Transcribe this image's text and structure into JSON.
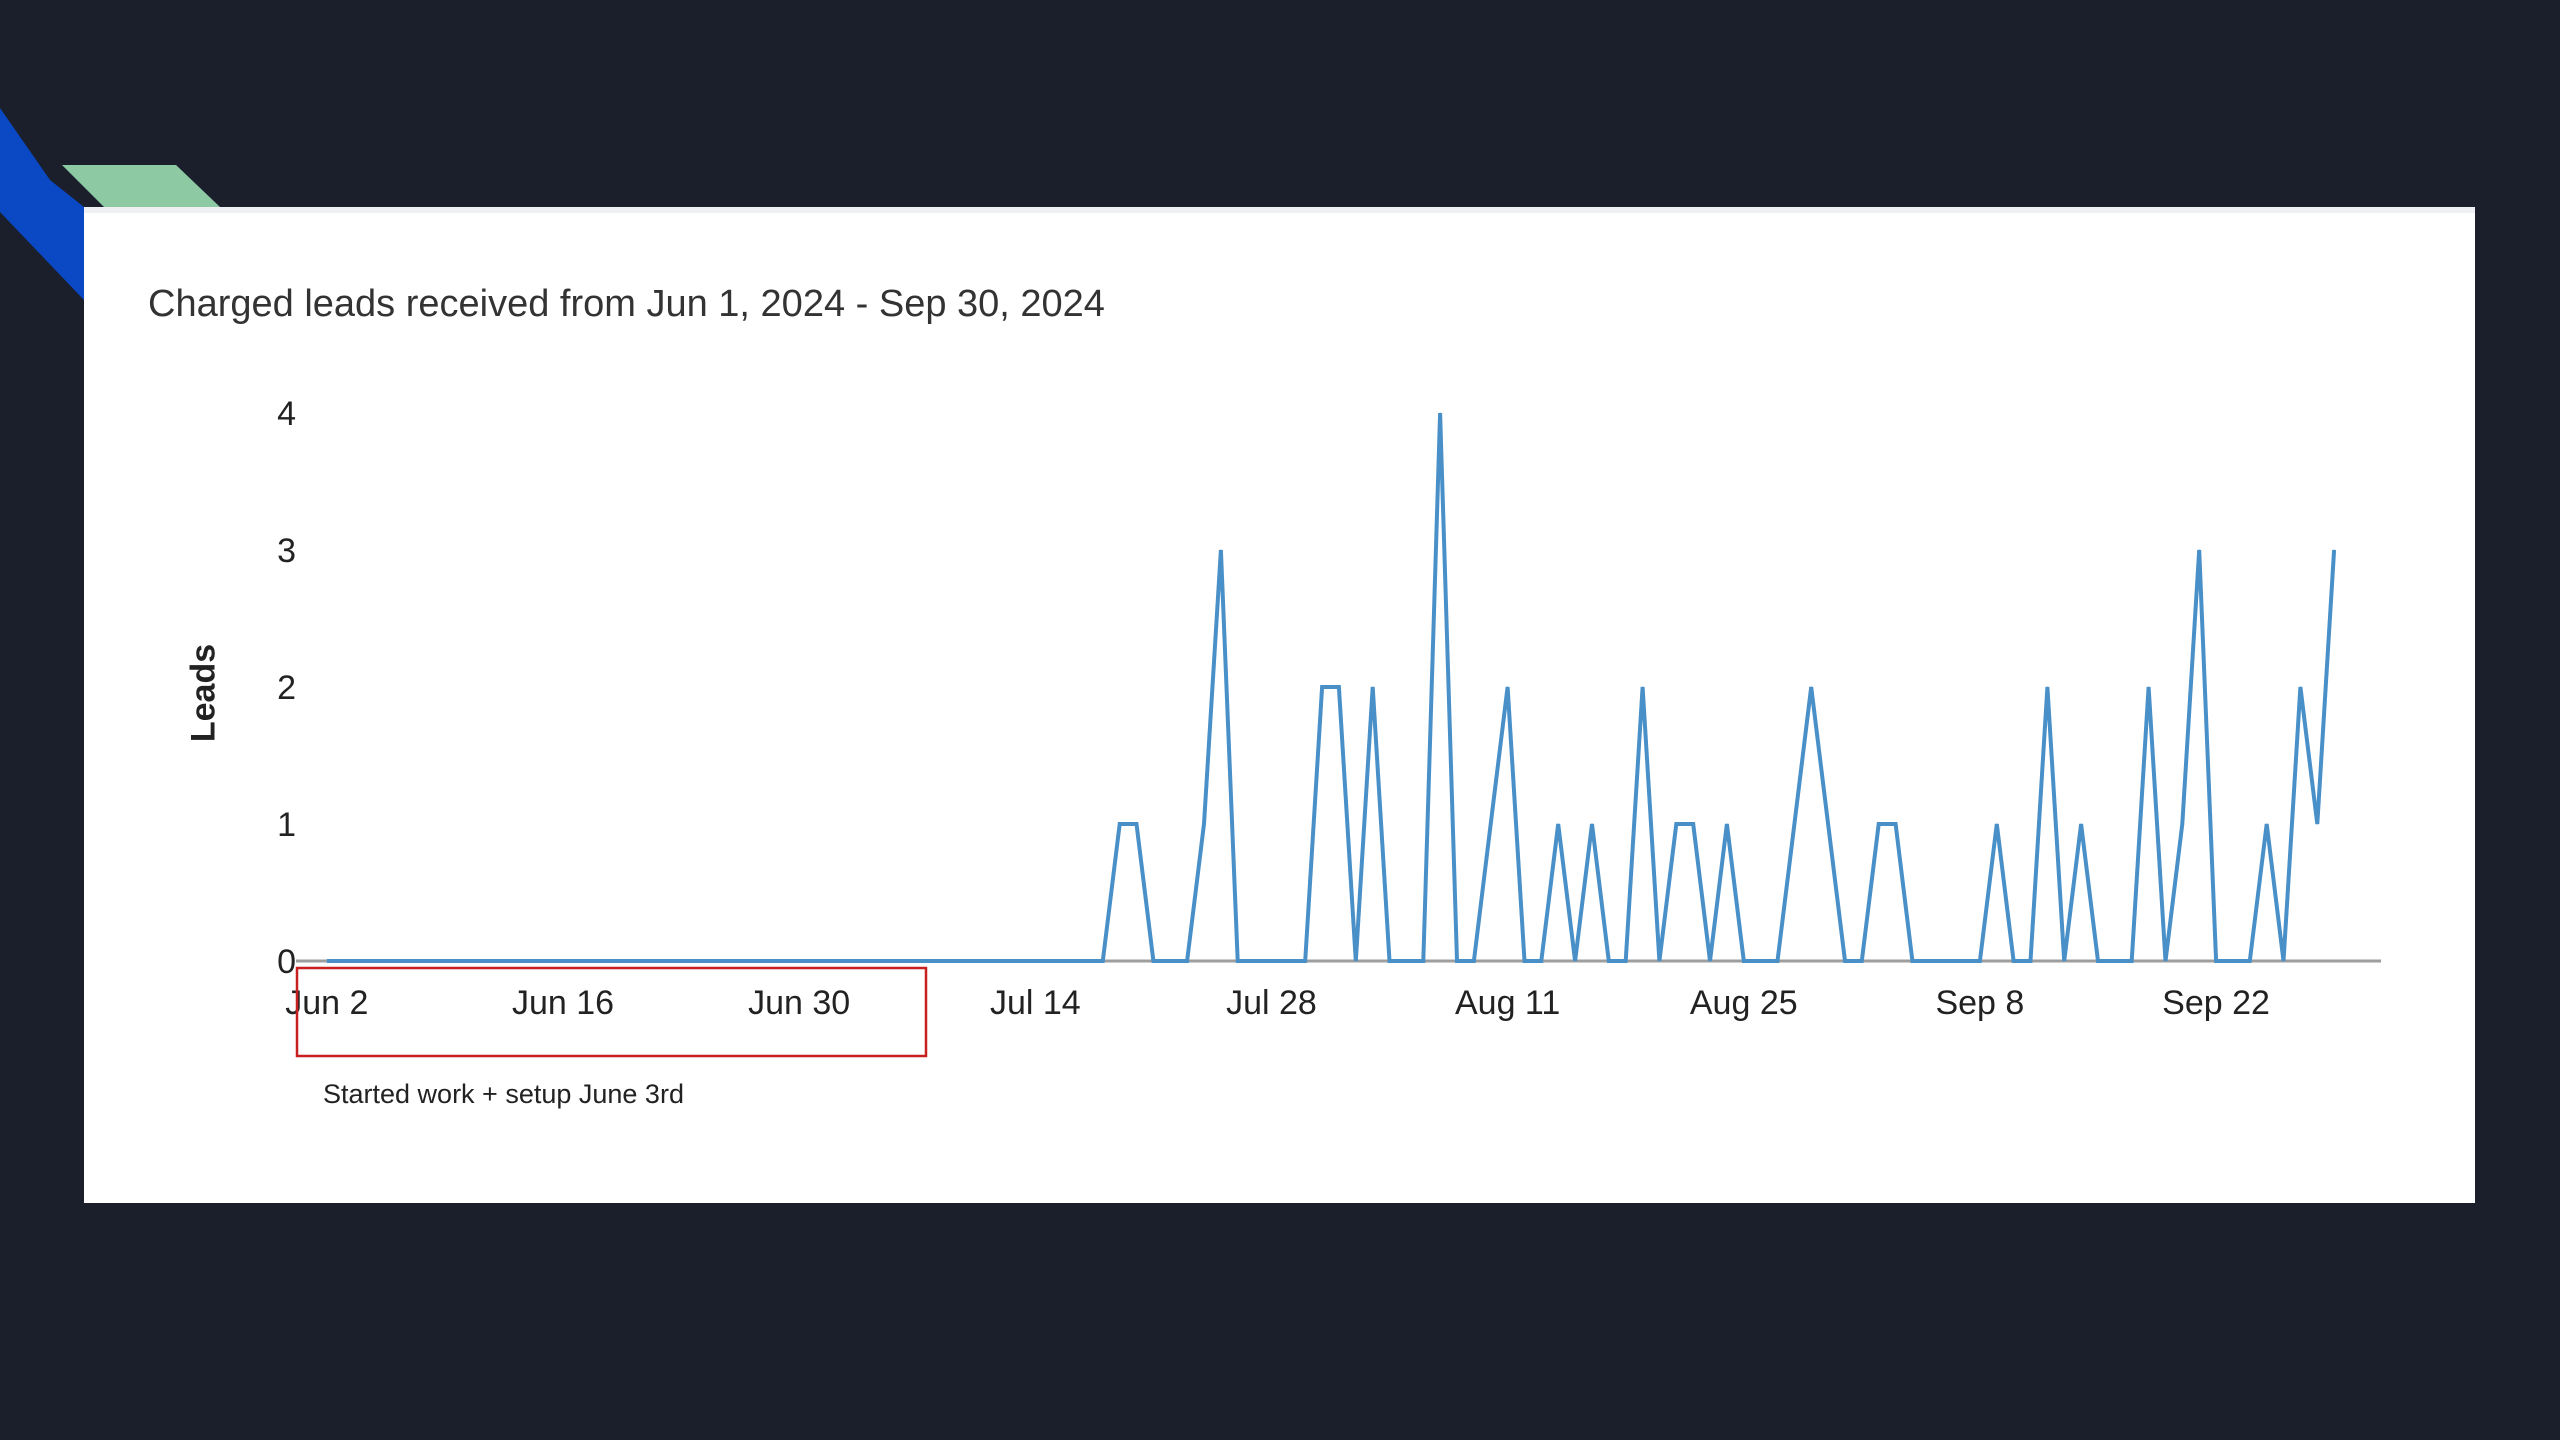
{
  "slide": {
    "background": "#1b1f2c",
    "accent_blue": "#0a48c4",
    "accent_green": "#8dcaa3"
  },
  "annotation": {
    "text": "Started work + setup June 3rd",
    "box_color": "#c8201e"
  },
  "chart_data": {
    "type": "line",
    "title": "Charged leads received from Jun 1, 2024 - Sep 30, 2024",
    "xlabel": "",
    "ylabel": "Leads",
    "ylim": [
      0,
      4
    ],
    "yticks": [
      0,
      1,
      2,
      3,
      4
    ],
    "grid": false,
    "x_start": "2024-06-01",
    "x_end": "2024-09-30",
    "xticks": [
      {
        "date": "2024-06-02",
        "label": "Jun 2"
      },
      {
        "date": "2024-06-16",
        "label": "Jun 16"
      },
      {
        "date": "2024-06-30",
        "label": "Jun 30"
      },
      {
        "date": "2024-07-14",
        "label": "Jul 14"
      },
      {
        "date": "2024-07-28",
        "label": "Jul 28"
      },
      {
        "date": "2024-08-11",
        "label": "Aug 11"
      },
      {
        "date": "2024-08-25",
        "label": "Aug 25"
      },
      {
        "date": "2024-09-08",
        "label": "Sep 8"
      },
      {
        "date": "2024-09-22",
        "label": "Sep 22"
      }
    ],
    "series": [
      {
        "color": "#4a90c8",
        "points": [
          {
            "date": "2024-07-19",
            "value": 1
          },
          {
            "date": "2024-07-20",
            "value": 1
          },
          {
            "date": "2024-07-24",
            "value": 1
          },
          {
            "date": "2024-07-25",
            "value": 3
          },
          {
            "date": "2024-07-31",
            "value": 2
          },
          {
            "date": "2024-08-01",
            "value": 2
          },
          {
            "date": "2024-08-03",
            "value": 2
          },
          {
            "date": "2024-08-07",
            "value": 4
          },
          {
            "date": "2024-08-10",
            "value": 1
          },
          {
            "date": "2024-08-11",
            "value": 2
          },
          {
            "date": "2024-08-14",
            "value": 1
          },
          {
            "date": "2024-08-16",
            "value": 1
          },
          {
            "date": "2024-08-19",
            "value": 2
          },
          {
            "date": "2024-08-21",
            "value": 1
          },
          {
            "date": "2024-08-22",
            "value": 1
          },
          {
            "date": "2024-08-24",
            "value": 1
          },
          {
            "date": "2024-08-28",
            "value": 1
          },
          {
            "date": "2024-08-29",
            "value": 2
          },
          {
            "date": "2024-08-30",
            "value": 1
          },
          {
            "date": "2024-09-02",
            "value": 1
          },
          {
            "date": "2024-09-03",
            "value": 1
          },
          {
            "date": "2024-09-09",
            "value": 1
          },
          {
            "date": "2024-09-12",
            "value": 2
          },
          {
            "date": "2024-09-14",
            "value": 1
          },
          {
            "date": "2024-09-18",
            "value": 2
          },
          {
            "date": "2024-09-20",
            "value": 1
          },
          {
            "date": "2024-09-21",
            "value": 3
          },
          {
            "date": "2024-09-25",
            "value": 1
          },
          {
            "date": "2024-09-27",
            "value": 2
          },
          {
            "date": "2024-09-28",
            "value": 1
          },
          {
            "date": "2024-09-29",
            "value": 3
          }
        ]
      }
    ]
  }
}
